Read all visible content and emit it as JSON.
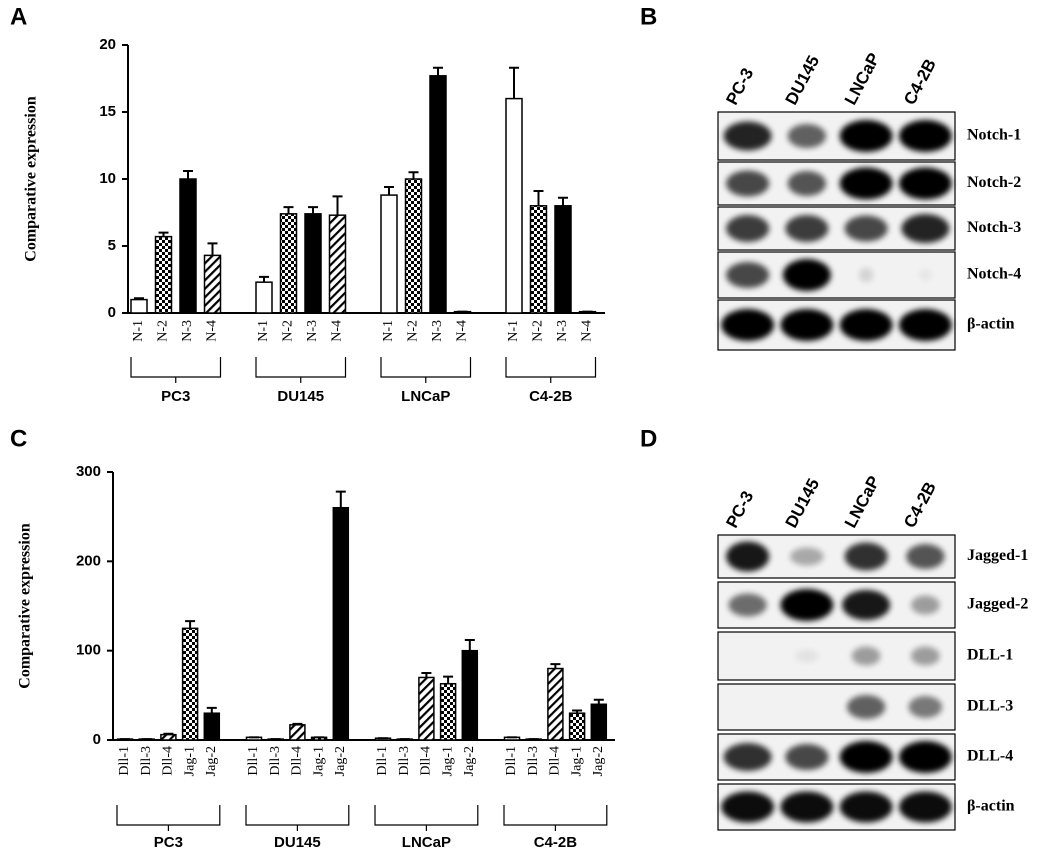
{
  "chart_data": [
    {
      "type": "bar",
      "panel": "A",
      "y_label": "Comparative expression",
      "groups": [
        "PC3",
        "DU145",
        "LNCaP",
        "C4-2B"
      ],
      "series": [
        {
          "name": "N-1",
          "pattern": "open",
          "values": [
            1,
            2.3,
            8.8,
            16
          ],
          "errors": [
            0.1,
            0.4,
            0.6,
            2.3
          ]
        },
        {
          "name": "N-2",
          "pattern": "checkered",
          "values": [
            5.7,
            7.4,
            10,
            8
          ],
          "errors": [
            0.3,
            0.5,
            0.5,
            1.1
          ]
        },
        {
          "name": "N-3",
          "pattern": "solid",
          "values": [
            10,
            7.4,
            17.7,
            8
          ],
          "errors": [
            0.6,
            0.5,
            0.6,
            0.6
          ]
        },
        {
          "name": "N-4",
          "pattern": "hatched",
          "values": [
            4.3,
            7.3,
            0.1,
            0.1
          ],
          "errors": [
            0.9,
            1.4,
            0,
            0
          ]
        }
      ],
      "ylim": [
        0,
        20
      ],
      "yticks": [
        0,
        5,
        10,
        15,
        20
      ]
    },
    {
      "type": "bar",
      "panel": "C",
      "y_label": "Comparative expression",
      "groups": [
        "PC3",
        "DU145",
        "LNCaP",
        "C4-2B"
      ],
      "series": [
        {
          "name": "Dll-1",
          "pattern": "open",
          "values": [
            1,
            3,
            2,
            3
          ],
          "errors": [
            0,
            0,
            0,
            0
          ]
        },
        {
          "name": "Dll-3",
          "pattern": "open",
          "values": [
            1,
            1,
            1,
            1
          ],
          "errors": [
            0,
            0,
            0,
            0
          ]
        },
        {
          "name": "Dll-4",
          "pattern": "hatched",
          "values": [
            6,
            17,
            70,
            80
          ],
          "errors": [
            1,
            1,
            5,
            5
          ]
        },
        {
          "name": "Jag-1",
          "pattern": "checkered",
          "values": [
            125,
            3,
            63,
            30
          ],
          "errors": [
            8,
            0,
            8,
            3
          ]
        },
        {
          "name": "Jag-2",
          "pattern": "solid",
          "values": [
            30,
            260,
            100,
            40
          ],
          "errors": [
            6,
            18,
            12,
            5
          ]
        }
      ],
      "ylim": [
        0,
        300
      ],
      "yticks": [
        0,
        100,
        200,
        300
      ]
    }
  ],
  "blots": [
    {
      "panel": "B",
      "lanes": [
        "PC-3",
        "DU145",
        "LNCaP",
        "C4-2B"
      ],
      "rows": [
        "Notch-1",
        "Notch-2",
        "Notch-3",
        "Notch-4",
        "β-actin"
      ]
    },
    {
      "panel": "D",
      "lanes": [
        "PC-3",
        "DU145",
        "LNCaP",
        "C4-2B"
      ],
      "rows": [
        "Jagged-1",
        "Jagged-2",
        "DLL-1",
        "DLL-3",
        "DLL-4",
        "β-actin"
      ]
    }
  ]
}
